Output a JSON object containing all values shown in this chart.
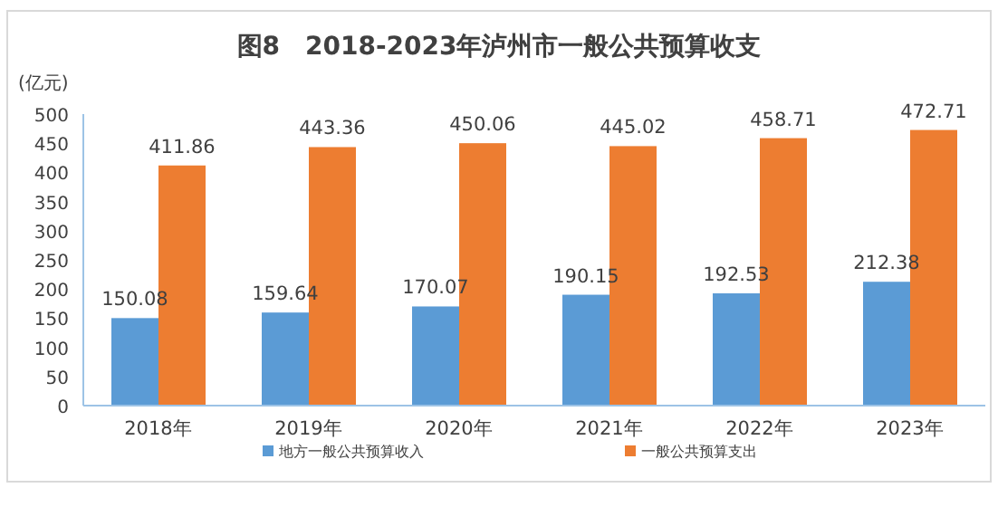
{
  "chart_data": {
    "type": "bar",
    "title": "图8　2018-2023年泸州市一般公共预算收支",
    "ylabel": "(亿元)",
    "categories": [
      "2018年",
      "2019年",
      "2020年",
      "2021年",
      "2022年",
      "2023年"
    ],
    "series": [
      {
        "name": "地方一般公共预算收入",
        "color": "#5b9bd5",
        "values": [
          150.08,
          159.64,
          170.07,
          190.15,
          192.53,
          212.38
        ]
      },
      {
        "name": "一般公共预算支出",
        "color": "#ed7d31",
        "values": [
          411.86,
          443.36,
          450.06,
          445.02,
          458.71,
          472.71
        ]
      }
    ],
    "ylim": [
      0,
      500
    ],
    "yticks": [
      0,
      50,
      100,
      150,
      200,
      250,
      300,
      350,
      400,
      450,
      500
    ],
    "data_labels": true,
    "legend": "bottom",
    "grid": false
  }
}
